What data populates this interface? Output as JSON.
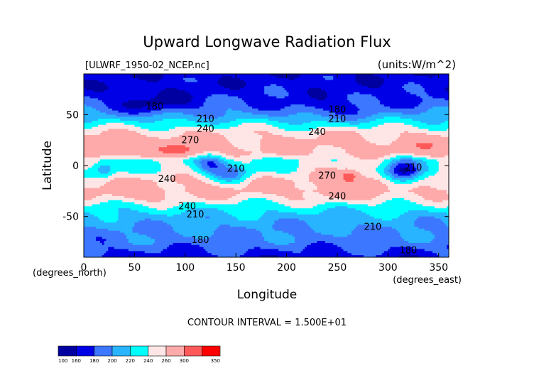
{
  "chart_data": {
    "type": "heatmap",
    "title": "Upward Longwave Radiation Flux",
    "file_label": "[ULWRF_1950-02_NCEP.nc]",
    "units_label": "(units:W/m^2)",
    "xlabel": "Longitude",
    "ylabel": "Latitude",
    "x_unit_label": "(degrees_east)",
    "y_unit_label": "(degrees_north)",
    "xlim": [
      0,
      360
    ],
    "ylim": [
      -90,
      90
    ],
    "x_ticks": [
      "0",
      "50",
      "100",
      "150",
      "200",
      "250",
      "300",
      "350"
    ],
    "y_ticks": [
      "50",
      "0",
      "-50"
    ],
    "x_tick_values": [
      0,
      50,
      100,
      150,
      200,
      250,
      300,
      350
    ],
    "y_tick_values": [
      50,
      0,
      -50
    ],
    "contour_interval_text": "CONTOUR INTERVAL = 1.500E+01",
    "contour_labels": [
      {
        "text": "180",
        "lon": 70,
        "lat": 55
      },
      {
        "text": "180",
        "lon": 250,
        "lat": 52
      },
      {
        "text": "210",
        "lon": 250,
        "lat": 43
      },
      {
        "text": "210",
        "lon": 120,
        "lat": 43
      },
      {
        "text": "240",
        "lon": 120,
        "lat": 33
      },
      {
        "text": "240",
        "lon": 230,
        "lat": 30
      },
      {
        "text": "270",
        "lon": 105,
        "lat": 22
      },
      {
        "text": "210",
        "lon": 150,
        "lat": -6
      },
      {
        "text": "240",
        "lon": 82,
        "lat": -16
      },
      {
        "text": "270",
        "lon": 240,
        "lat": -13
      },
      {
        "text": "240",
        "lon": 250,
        "lat": -33
      },
      {
        "text": "240",
        "lon": 102,
        "lat": -43
      },
      {
        "text": "210",
        "lon": 110,
        "lat": -51
      },
      {
        "text": "210",
        "lon": 285,
        "lat": -63
      },
      {
        "text": "180",
        "lon": 115,
        "lat": -76
      },
      {
        "text": "180",
        "lon": 320,
        "lat": -86
      },
      {
        "text": "210",
        "lon": 325,
        "lat": -5
      }
    ],
    "colorbar": {
      "labels": [
        "100",
        "160",
        "180",
        "200",
        "220",
        "240",
        "260",
        "300",
        "350"
      ],
      "colors": [
        "#0000a0",
        "#0000e6",
        "#3c78ff",
        "#28b4ff",
        "#00ffff",
        "#ffe6e6",
        "#ffaaaa",
        "#ff5a5a",
        "#ff0000"
      ]
    },
    "zonal_profile": [
      {
        "lat": 90,
        "value": 165
      },
      {
        "lat": 75,
        "value": 170
      },
      {
        "lat": 60,
        "value": 185
      },
      {
        "lat": 50,
        "value": 205
      },
      {
        "lat": 42,
        "value": 228
      },
      {
        "lat": 33,
        "value": 255
      },
      {
        "lat": 22,
        "value": 268
      },
      {
        "lat": 12,
        "value": 262
      },
      {
        "lat": 5,
        "value": 238
      },
      {
        "lat": -5,
        "value": 240
      },
      {
        "lat": -15,
        "value": 262
      },
      {
        "lat": -25,
        "value": 268
      },
      {
        "lat": -33,
        "value": 252
      },
      {
        "lat": -40,
        "value": 232
      },
      {
        "lat": -50,
        "value": 212
      },
      {
        "lat": -62,
        "value": 200
      },
      {
        "lat": -75,
        "value": 192
      },
      {
        "lat": -90,
        "value": 170
      }
    ],
    "regions": [
      {
        "lon": 95,
        "lat": 15,
        "rx": 20,
        "ry": 7,
        "delta": 55
      },
      {
        "lon": 35,
        "lat": 20,
        "rx": 45,
        "ry": 10,
        "delta": 18
      },
      {
        "lon": 125,
        "lat": 2,
        "rx": 14,
        "ry": 9,
        "delta": -55
      },
      {
        "lon": 145,
        "lat": -8,
        "rx": 18,
        "ry": 10,
        "delta": -50
      },
      {
        "lon": 20,
        "lat": -3,
        "rx": 10,
        "ry": 8,
        "delta": -40
      },
      {
        "lon": 315,
        "lat": -7,
        "rx": 18,
        "ry": 12,
        "delta": -95
      },
      {
        "lon": 265,
        "lat": -13,
        "rx": 35,
        "ry": 18,
        "delta": 25
      },
      {
        "lon": 262,
        "lat": -10,
        "rx": 8,
        "ry": 5,
        "delta": 55
      },
      {
        "lon": 70,
        "lat": 60,
        "rx": 40,
        "ry": 12,
        "delta": -30
      },
      {
        "lon": 240,
        "lat": 55,
        "rx": 50,
        "ry": 12,
        "delta": -20
      },
      {
        "lon": 335,
        "lat": 18,
        "rx": 25,
        "ry": 10,
        "delta": 25
      },
      {
        "lon": 55,
        "lat": -30,
        "rx": 30,
        "ry": 8,
        "delta": 15
      }
    ]
  }
}
